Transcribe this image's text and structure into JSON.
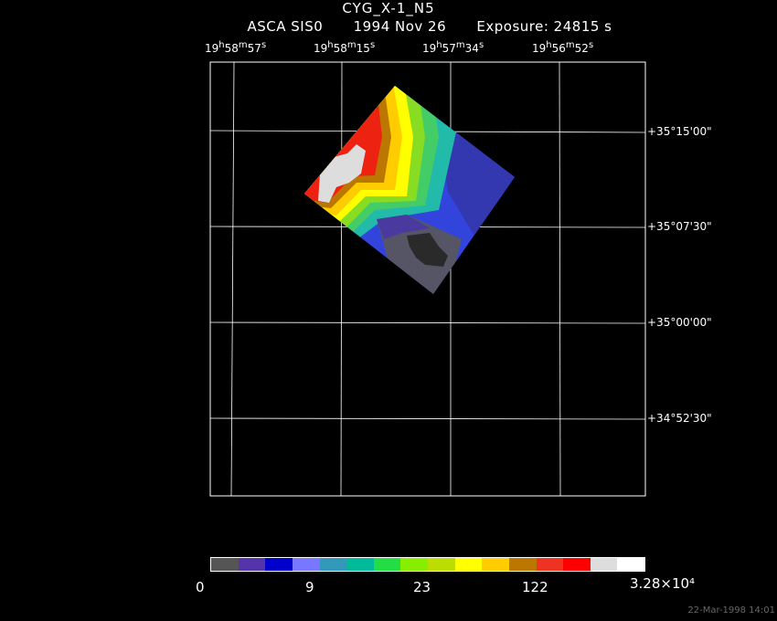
{
  "title": "CYG_X-1_N5",
  "subtitle": {
    "instrument": "ASCA SIS0",
    "date": "1994 Nov 26",
    "exposure": "Exposure: 24815 s"
  },
  "ra_labels": [
    {
      "h": "19",
      "m": "58",
      "s": "57"
    },
    {
      "h": "19",
      "m": "58",
      "s": "15"
    },
    {
      "h": "19",
      "m": "57",
      "s": "34"
    },
    {
      "h": "19",
      "m": "56",
      "s": "52"
    }
  ],
  "dec_labels": [
    "+35°15'00\"",
    "+35°07'30\"",
    "+35°00'00\"",
    "+34°52'30\""
  ],
  "colorbar": {
    "colors": [
      "#555555",
      "#5533aa",
      "#0000cc",
      "#7777ff",
      "#3399bb",
      "#00bb99",
      "#22dd44",
      "#88ee00",
      "#bbdd00",
      "#ffff00",
      "#ffcc00",
      "#bb7700",
      "#ee3322",
      "#ff0000",
      "#dddddd",
      "#ffffff"
    ],
    "labels": [
      "0",
      "9",
      "23",
      "122",
      "3.28×10⁴"
    ]
  },
  "footer": "22-Mar-1998 14:01"
}
